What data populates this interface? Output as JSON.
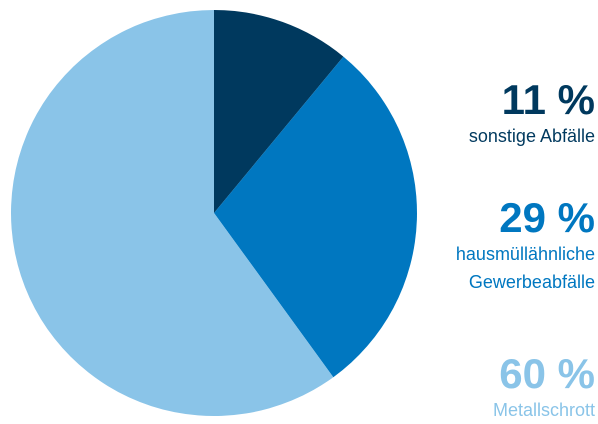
{
  "chart_data": {
    "type": "pie",
    "categories": [
      "sonstige Abfälle",
      "hausmüllähnliche Gewerbeabfälle",
      "Metallschrott"
    ],
    "values": [
      11,
      29,
      60
    ],
    "value_labels": [
      "11 %",
      "29 %",
      "60 %"
    ],
    "colors": [
      "#00395e",
      "#0077c0",
      "#8ac4e8"
    ]
  }
}
